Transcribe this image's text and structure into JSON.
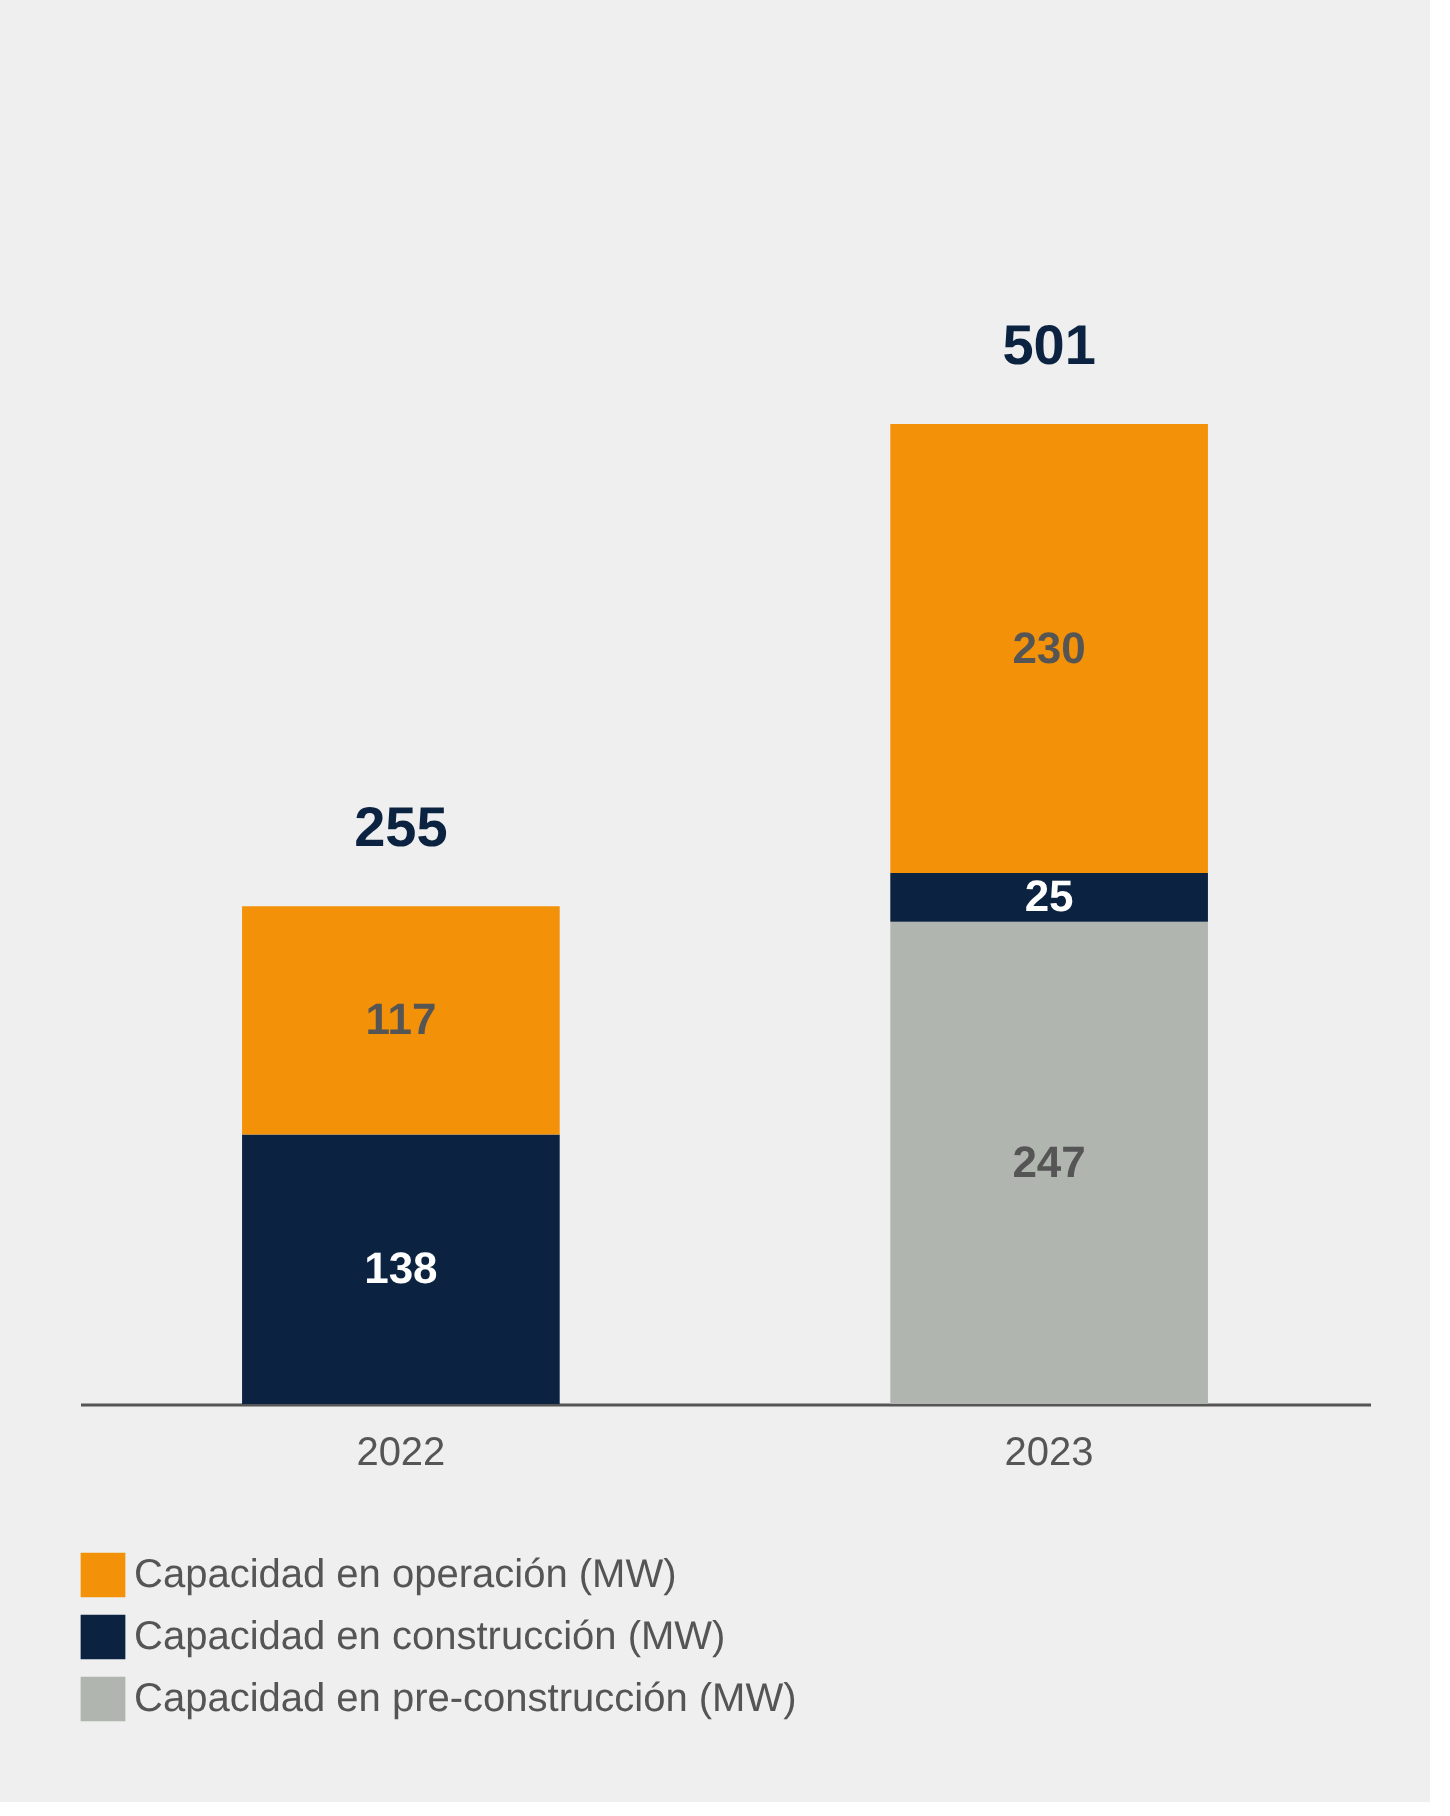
{
  "chart_data": {
    "type": "bar",
    "stacked": true,
    "categories": [
      "2022",
      "2023"
    ],
    "series": [
      {
        "name": "Capacidad en pre-construcción (MW)",
        "color": "#b0b5b0",
        "values": [
          null,
          247
        ]
      },
      {
        "name": "Capacidad en construcción (MW)",
        "color": "#0b2340",
        "values": [
          138,
          25
        ]
      },
      {
        "name": "Capacidad en operación (MW)",
        "color": "#f39208",
        "values": [
          117,
          230
        ]
      }
    ],
    "data_labels": true,
    "totals": [
      "255",
      "501"
    ],
    "legend": "bottom",
    "grid": false
  }
}
